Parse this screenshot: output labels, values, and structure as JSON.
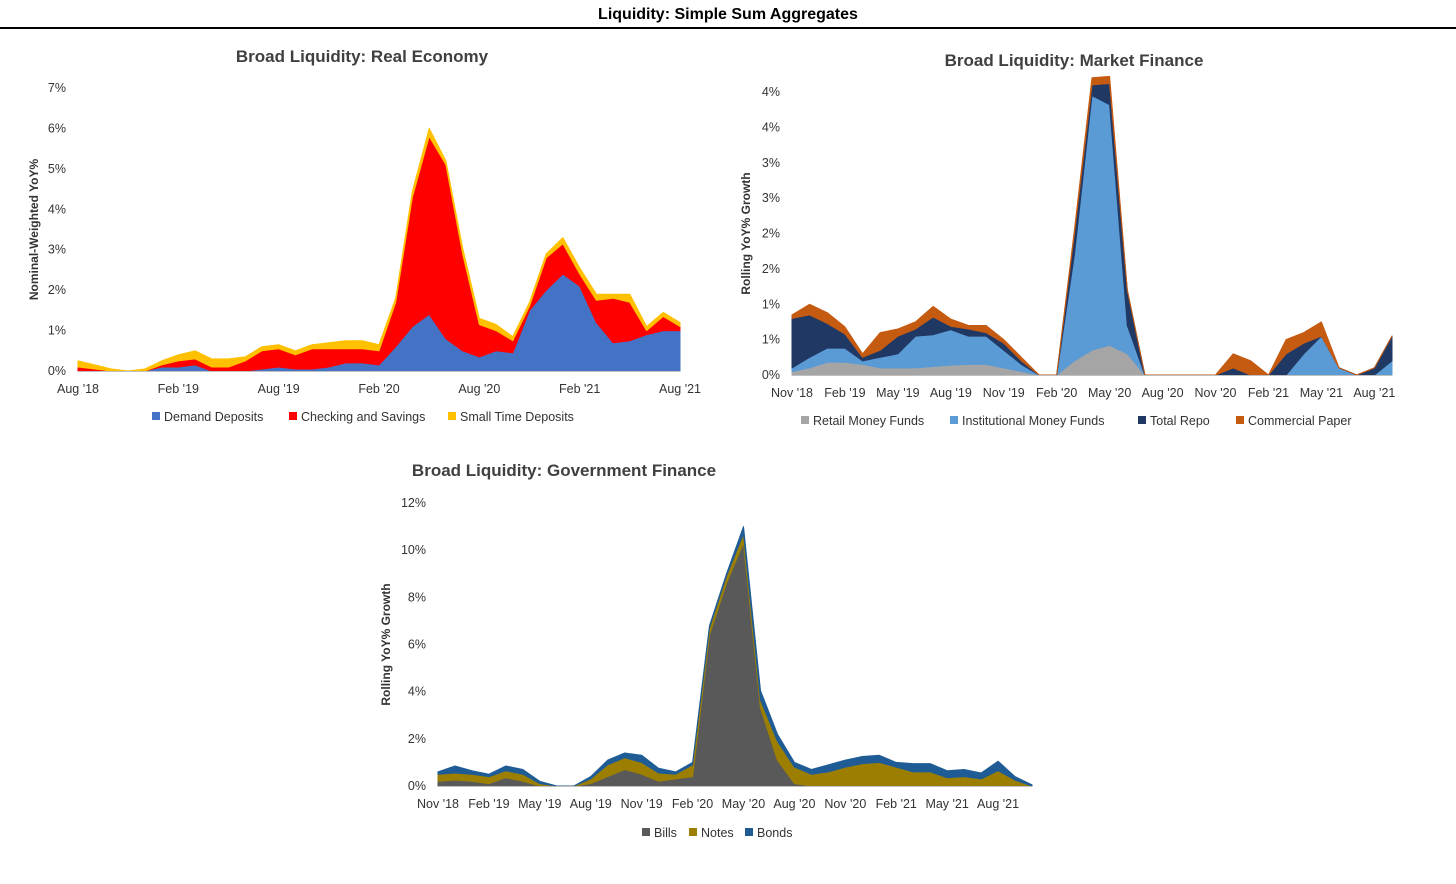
{
  "page_title": "Liquidity: Simple Sum Aggregates",
  "chart_data": [
    {
      "id": "real",
      "type": "area",
      "stacked": true,
      "title": "Broad Liquidity: Real Economy",
      "xlabel": "",
      "ylabel": "Nominal-Weighted YoY%",
      "ylim": [
        0,
        7
      ],
      "yticks": [
        "0%",
        "1%",
        "2%",
        "3%",
        "4%",
        "5%",
        "6%",
        "7%"
      ],
      "xticks": [
        "Aug '18",
        "Feb '19",
        "Aug '19",
        "Feb '20",
        "Aug '20",
        "Feb '21",
        "Aug '21"
      ],
      "x": [
        "Aug '18",
        "Sep '18",
        "Oct '18",
        "Nov '18",
        "Dec '18",
        "Jan '19",
        "Feb '19",
        "Mar '19",
        "Apr '19",
        "May '19",
        "Jun '19",
        "Jul '19",
        "Aug '19",
        "Sep '19",
        "Oct '19",
        "Nov '19",
        "Dec '19",
        "Jan '20",
        "Feb '20",
        "Mar '20",
        "Apr '20",
        "May '20",
        "Jun '20",
        "Jul '20",
        "Aug '20",
        "Sep '20",
        "Oct '20",
        "Nov '20",
        "Dec '20",
        "Jan '21",
        "Feb '21",
        "Mar '21",
        "Apr '21",
        "May '21",
        "Jun '21",
        "Jul '21",
        "Aug '21"
      ],
      "legend_position": "bottom",
      "grid": false,
      "series": [
        {
          "name": "Demand Deposits",
          "color": "#4472C4",
          "values": [
            0,
            0,
            0,
            0,
            0,
            0.1,
            0.1,
            0.15,
            0,
            0,
            0,
            0.05,
            0.1,
            0.05,
            0.05,
            0.1,
            0.2,
            0.2,
            0.15,
            0.6,
            1.1,
            1.4,
            0.8,
            0.5,
            0.35,
            0.5,
            0.45,
            1.5,
            2,
            2.4,
            2.1,
            1.2,
            0.7,
            0.75,
            0.9,
            1.0,
            1.0
          ]
        },
        {
          "name": "Checking and Savings",
          "color": "#FF0000",
          "values": [
            0.1,
            0.05,
            0,
            0,
            0,
            0.05,
            0.15,
            0.15,
            0.1,
            0.1,
            0.25,
            0.45,
            0.45,
            0.35,
            0.5,
            0.45,
            0.35,
            0.35,
            0.35,
            1.1,
            3.2,
            4.4,
            4.3,
            2.4,
            0.8,
            0.5,
            0.3,
            0.1,
            0.8,
            0.75,
            0.3,
            0.55,
            1.1,
            0.95,
            0.1,
            0.35,
            0.1
          ]
        },
        {
          "name": "Small Time Deposits",
          "color": "#FFC000",
          "values": [
            0.15,
            0.1,
            0.05,
            0,
            0.05,
            0.1,
            0.15,
            0.2,
            0.2,
            0.2,
            0.1,
            0.1,
            0.1,
            0.1,
            0.1,
            0.15,
            0.2,
            0.2,
            0.15,
            0.1,
            0.15,
            0.2,
            0.1,
            0.15,
            0.15,
            0.15,
            0.1,
            0.1,
            0.1,
            0.15,
            0.15,
            0.15,
            0.1,
            0.2,
            0.1,
            0.1,
            0.1
          ]
        }
      ]
    },
    {
      "id": "market",
      "type": "area",
      "stacked": true,
      "title": "Broad Liquidity: Market Finance",
      "xlabel": "",
      "ylabel": "Rolling YoY% Growth",
      "ylim": [
        0,
        4
      ],
      "yticks": [
        "0%",
        "1%",
        "1%",
        "2%",
        "2%",
        "3%",
        "3%",
        "4%",
        "4%"
      ],
      "xticks": [
        "Nov '18",
        "Feb '19",
        "May '19",
        "Aug '19",
        "Nov '19",
        "Feb '20",
        "May '20",
        "Aug '20",
        "Nov '20",
        "Feb '21",
        "May '21",
        "Aug '21"
      ],
      "x": [
        "Nov '18",
        "Dec '18",
        "Jan '19",
        "Feb '19",
        "Mar '19",
        "Apr '19",
        "May '19",
        "Jun '19",
        "Jul '19",
        "Aug '19",
        "Sep '19",
        "Oct '19",
        "Nov '19",
        "Dec '19",
        "Jan '20",
        "Feb '20",
        "Mar '20",
        "Apr '20",
        "May '20",
        "Jun '20",
        "Jul '20",
        "Aug '20",
        "Sep '20",
        "Oct '20",
        "Nov '20",
        "Dec '20",
        "Jan '21",
        "Feb '21",
        "Mar '21",
        "Apr '21",
        "May '21",
        "Jun '21",
        "Jul '21",
        "Aug '21",
        "Sep '21"
      ],
      "legend_position": "bottom",
      "grid": false,
      "series": [
        {
          "name": "Retail Money Funds",
          "color": "#A5A5A5",
          "values": [
            0.05,
            0.1,
            0.18,
            0.18,
            0.15,
            0.1,
            0.1,
            0.1,
            0.12,
            0.14,
            0.15,
            0.15,
            0.1,
            0.05,
            0,
            0,
            0.2,
            0.35,
            0.42,
            0.3,
            0,
            0,
            0,
            0,
            0,
            0,
            0,
            0,
            0,
            0,
            0,
            0,
            0,
            0,
            0
          ]
        },
        {
          "name": "Institutional Money Funds",
          "color": "#5B9BD5",
          "values": [
            0.05,
            0.15,
            0.2,
            0.2,
            0.05,
            0.15,
            0.2,
            0.45,
            0.45,
            0.5,
            0.4,
            0.4,
            0.25,
            0.1,
            0,
            0,
            1.5,
            3.6,
            3.4,
            0.4,
            0,
            0,
            0,
            0,
            0,
            0,
            0,
            0,
            0,
            0.3,
            0.55,
            0.1,
            0,
            0,
            0.2
          ]
        },
        {
          "name": "Total Repo",
          "color": "#203864",
          "values": [
            0.7,
            0.6,
            0.35,
            0.2,
            0.05,
            0.1,
            0.25,
            0.1,
            0.25,
            0.05,
            0.1,
            0.05,
            0.1,
            0.05,
            0,
            0,
            0.3,
            0.15,
            0.3,
            0.5,
            0,
            0,
            0,
            0,
            0,
            0.1,
            0,
            0,
            0.3,
            0.15,
            0,
            0,
            0,
            0.1,
            0.35
          ]
        },
        {
          "name": "Commercial Paper",
          "color": "#C55A11",
          "values": [
            0.05,
            0.15,
            0.15,
            0.1,
            0.05,
            0.25,
            0.1,
            0.1,
            0.15,
            0.1,
            0.05,
            0.1,
            0.05,
            0.05,
            0,
            0,
            0.05,
            0.1,
            0.1,
            0,
            0,
            0,
            0,
            0,
            0,
            0.2,
            0.2,
            0,
            0.2,
            0.15,
            0.2,
            0,
            0,
            0,
            0
          ]
        }
      ]
    },
    {
      "id": "gov",
      "type": "area",
      "stacked": true,
      "title": "Broad Liquidity: Government Finance",
      "xlabel": "",
      "ylabel": "Rolling YoY%  Growth",
      "ylim": [
        0,
        12
      ],
      "yticks": [
        "0%",
        "2%",
        "4%",
        "6%",
        "8%",
        "10%",
        "12%"
      ],
      "xticks": [
        "Nov '18",
        "Feb '19",
        "May '19",
        "Aug '19",
        "Nov '19",
        "Feb '20",
        "May '20",
        "Aug '20",
        "Nov '20",
        "Feb '21",
        "May '21",
        "Aug '21"
      ],
      "x": [
        "Nov '18",
        "Dec '18",
        "Jan '19",
        "Feb '19",
        "Mar '19",
        "Apr '19",
        "May '19",
        "Jun '19",
        "Jul '19",
        "Aug '19",
        "Sep '19",
        "Oct '19",
        "Nov '19",
        "Dec '19",
        "Jan '20",
        "Feb '20",
        "Mar '20",
        "Apr '20",
        "May '20",
        "Jun '20",
        "Jul '20",
        "Aug '20",
        "Sep '20",
        "Oct '20",
        "Nov '20",
        "Dec '20",
        "Jan '21",
        "Feb '21",
        "Mar '21",
        "Apr '21",
        "May '21",
        "Jun '21",
        "Jul '21",
        "Aug '21",
        "Sep '21",
        "Oct '21"
      ],
      "legend_position": "bottom",
      "grid": false,
      "series": [
        {
          "name": "Bills",
          "color": "#595959",
          "values": [
            0.2,
            0.25,
            0.2,
            0.1,
            0.35,
            0.2,
            0,
            0,
            0,
            0.1,
            0.4,
            0.7,
            0.5,
            0.2,
            0.3,
            0.4,
            6.4,
            8.6,
            10.3,
            3.3,
            1.1,
            0.1,
            0,
            0,
            0,
            0,
            0,
            0,
            0,
            0,
            0,
            0,
            0,
            0,
            0,
            0
          ]
        },
        {
          "name": "Notes",
          "color": "#9C7F00",
          "values": [
            0.3,
            0.3,
            0.3,
            0.3,
            0.3,
            0.3,
            0.1,
            0,
            0,
            0.2,
            0.5,
            0.5,
            0.5,
            0.35,
            0.2,
            0.5,
            0.3,
            0.3,
            0.4,
            0.35,
            0.8,
            0.7,
            0.5,
            0.6,
            0.8,
            0.95,
            1,
            0.8,
            0.6,
            0.6,
            0.35,
            0.4,
            0.3,
            0.65,
            0.25,
            0
          ]
        },
        {
          "name": "Bonds",
          "color": "#1F5C96",
          "values": [
            0.1,
            0.3,
            0.15,
            0.1,
            0.2,
            0.2,
            0.1,
            0,
            0,
            0.1,
            0.2,
            0.2,
            0.3,
            0.2,
            0.1,
            0.1,
            0.1,
            0.1,
            0.3,
            0.4,
            0.3,
            0.2,
            0.2,
            0.3,
            0.3,
            0.3,
            0.3,
            0.2,
            0.35,
            0.35,
            0.3,
            0.3,
            0.25,
            0.4,
            0.15,
            0.05
          ]
        }
      ]
    }
  ]
}
